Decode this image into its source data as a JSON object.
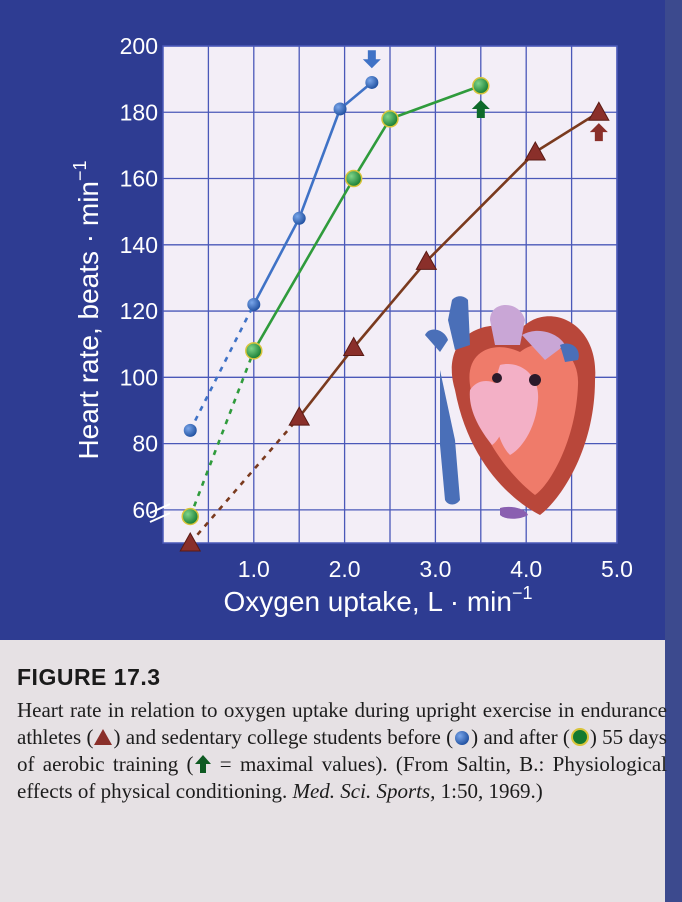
{
  "chart_data": {
    "type": "line",
    "xlabel": "Oxygen uptake, L · min",
    "xlabel_sup": "−1",
    "ylabel": "Heart rate, beats · min",
    "ylabel_sup": "−1",
    "xlim": [
      0,
      5.0
    ],
    "ylim": [
      50,
      200
    ],
    "x_ticks": [
      1.0,
      2.0,
      3.0,
      4.0,
      5.0
    ],
    "x_tick_labels": [
      "1.0",
      "2.0",
      "3.0",
      "4.0",
      "5.0"
    ],
    "y_ticks": [
      60,
      80,
      100,
      120,
      140,
      160,
      180,
      200
    ],
    "y_tick_labels": [
      "60",
      "80",
      "100",
      "120",
      "140",
      "160",
      "180",
      "200"
    ],
    "grid": true,
    "series": [
      {
        "key": "before",
        "color": "#2f5fb0",
        "line": "#3f72c6",
        "marker": "circle",
        "x": [
          0.3,
          1.0,
          1.5,
          1.95,
          2.3
        ],
        "y": [
          84,
          122,
          148,
          181,
          189
        ],
        "dashed_to": 1,
        "max_arrow": {
          "x": 2.3,
          "y": 196,
          "dir": "down"
        }
      },
      {
        "key": "after",
        "color": "#1a8a3a",
        "line": "#2f9b3c",
        "marker": "circle",
        "x": [
          0.3,
          1.0,
          2.1,
          2.5,
          3.5
        ],
        "y": [
          58,
          108,
          160,
          178,
          188
        ],
        "dashed_to": 1,
        "max_arrow": {
          "x": 3.5,
          "y": 181,
          "dir": "up"
        }
      },
      {
        "key": "athletes",
        "color": "#8a2f2a",
        "line": "#7a3a1e",
        "marker": "triangle",
        "x": [
          0.3,
          1.5,
          2.1,
          2.9,
          4.1,
          4.8
        ],
        "y": [
          50,
          88,
          109,
          135,
          168,
          180
        ],
        "dashed_to": 1,
        "max_arrow": {
          "x": 4.8,
          "y": 174,
          "dir": "up"
        }
      }
    ]
  },
  "caption": {
    "figure_label": "FIGURE 17.3",
    "text_1": "Heart rate in relation to oxygen uptake during upright exercise in endurance athletes (",
    "text_2": ") and sedentary college students before (",
    "text_3": ") and after (",
    "text_4": ") 55 days of aerobic training (",
    "text_5": " = maximal values). (From Saltin, B.: Physiological effects of physical conditioning. ",
    "journal": "Med. Sci. Sports,",
    "text_6": " 1:50, 1969.)"
  },
  "colors": {
    "panel": "#2e3c92",
    "plot_area": "#f3eef7",
    "grid": "#4a58b8",
    "axis_text": "#ffffff"
  }
}
